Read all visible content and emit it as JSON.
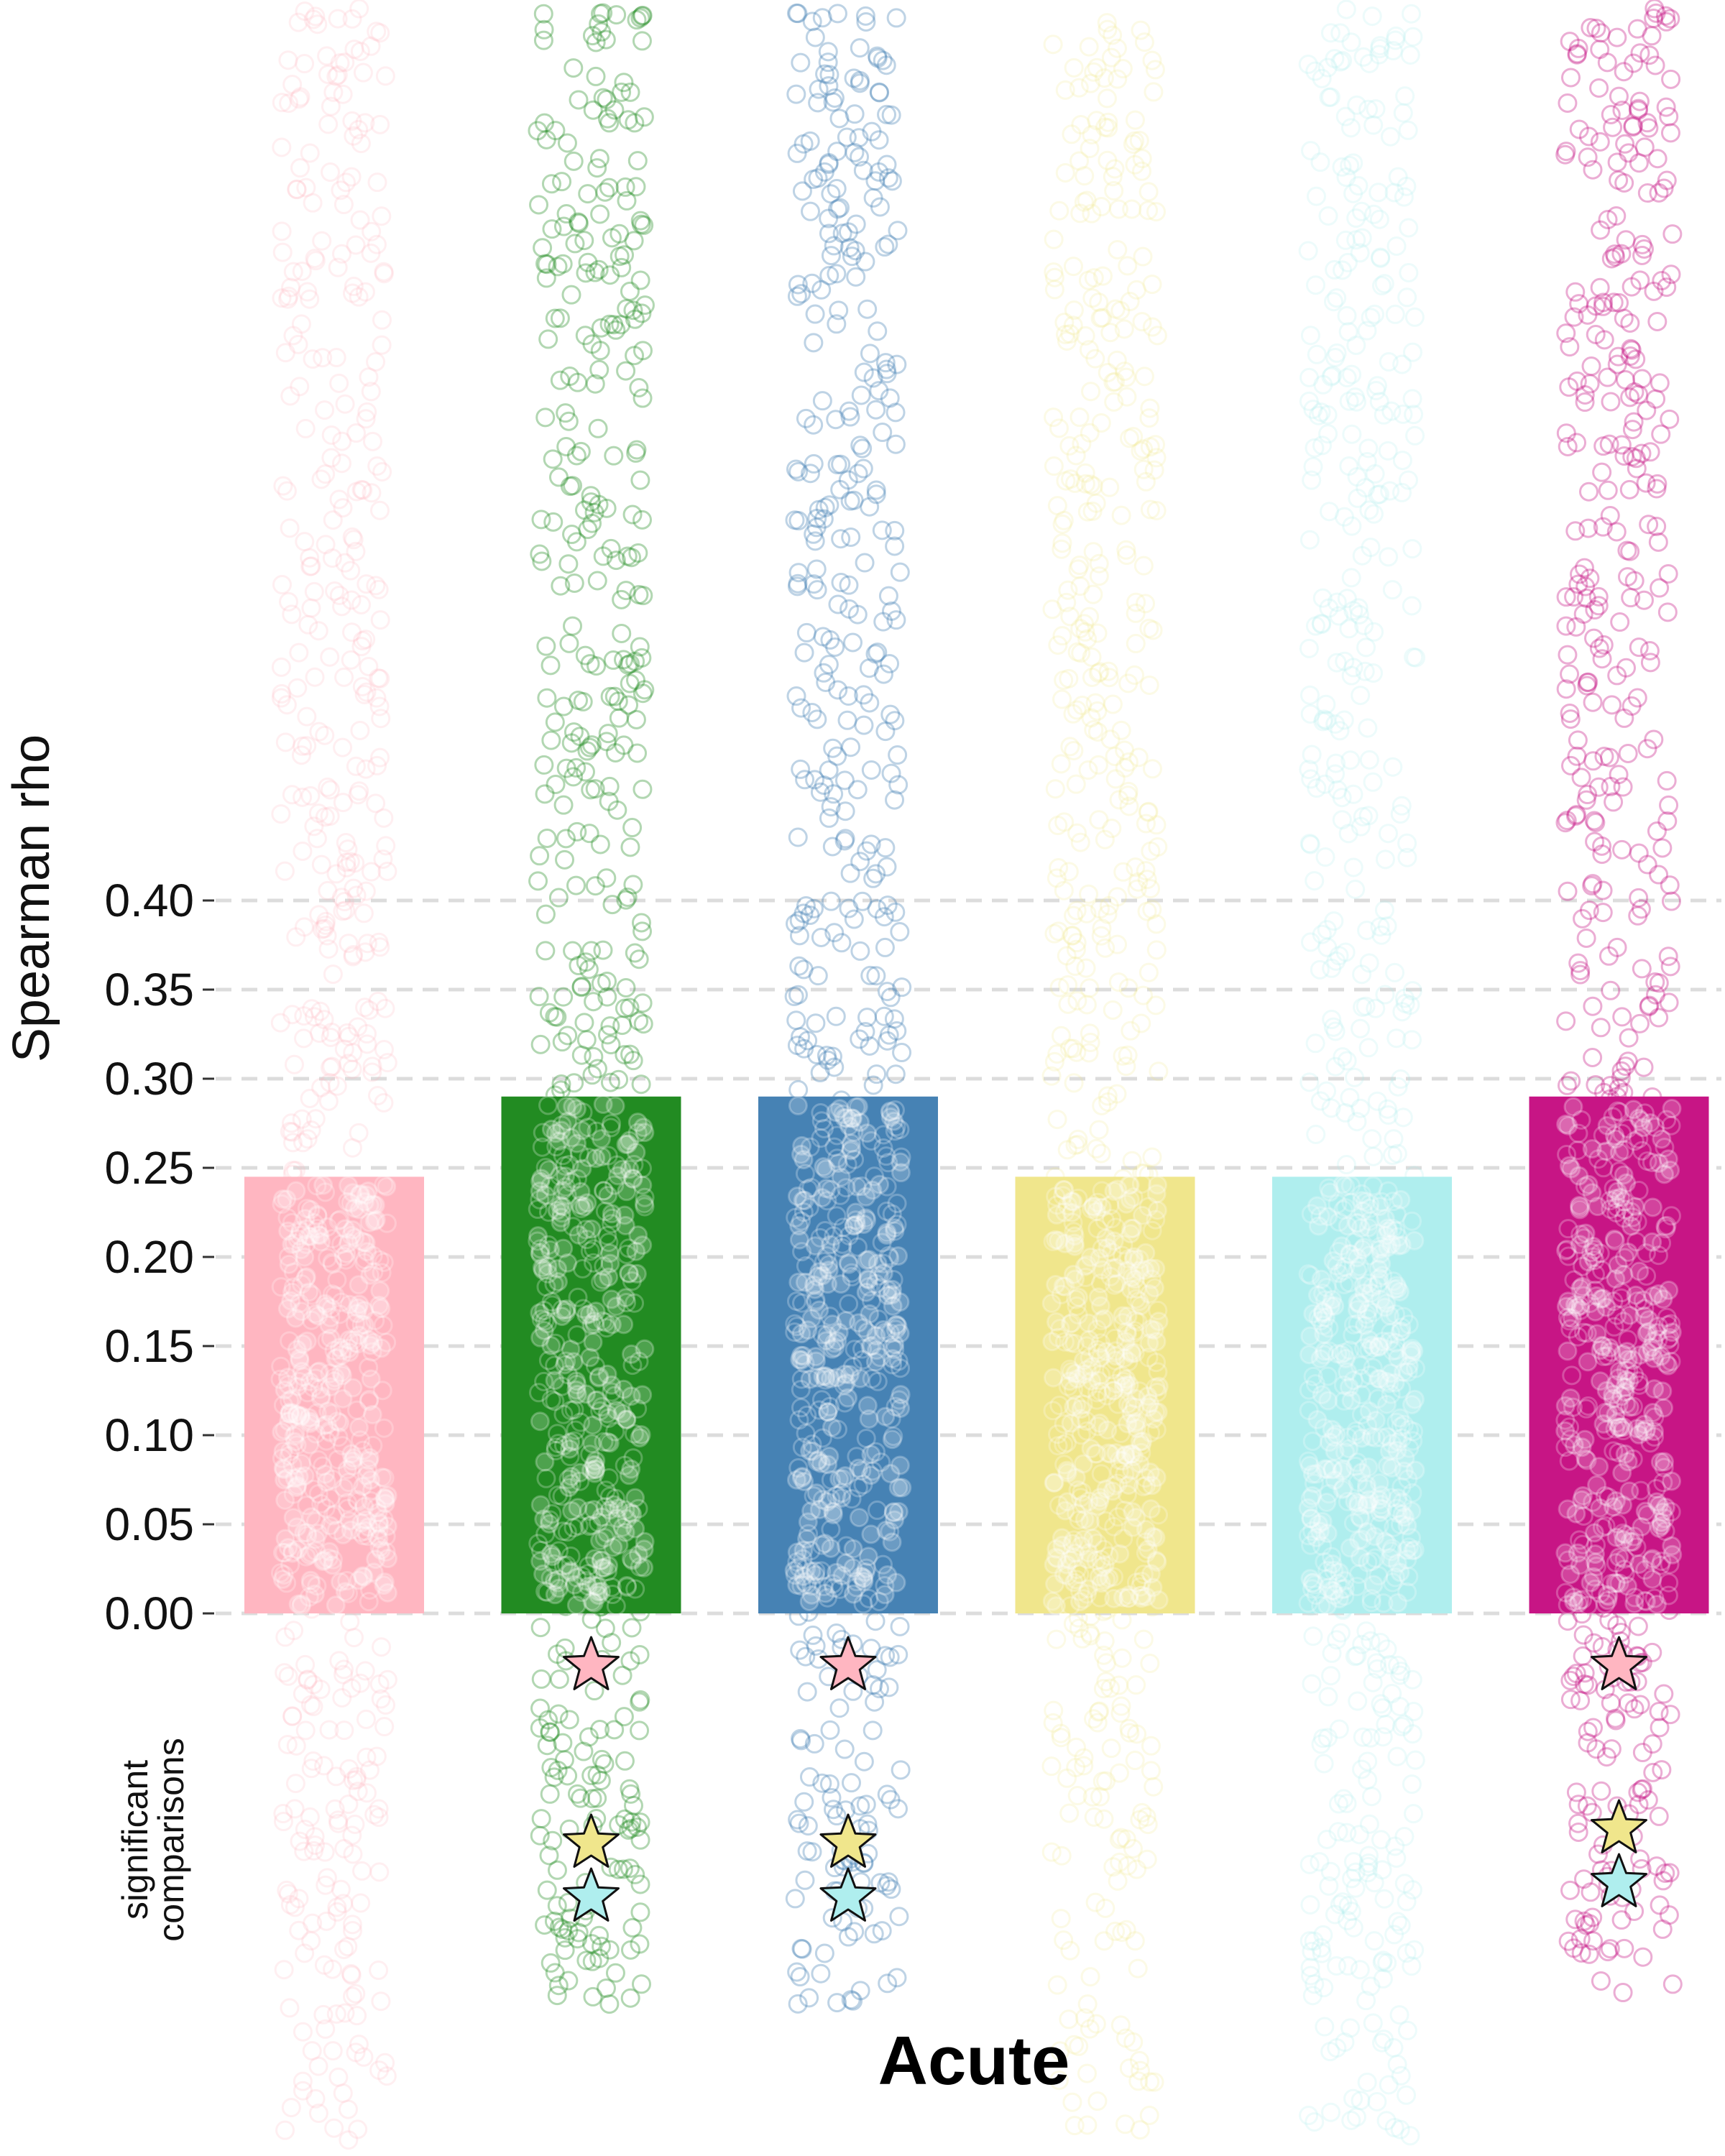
{
  "chart_data": {
    "type": "bar",
    "title": "",
    "xlabel": "Acute",
    "ylabel": "Spearman rho",
    "ylim": [
      0,
      0.45
    ],
    "yticks": [
      "0.00",
      "0.05",
      "0.10",
      "0.15",
      "0.20",
      "0.25",
      "0.30",
      "0.35",
      "0.40"
    ],
    "grid": true,
    "legend": "none",
    "categories": [
      "",
      "",
      "",
      "",
      "",
      ""
    ],
    "values": [
      0.245,
      0.29,
      0.29,
      0.245,
      0.245,
      0.29
    ],
    "colors": [
      "#ffb6c1",
      "#228b22",
      "#4682b4",
      "#f0e68c",
      "#afeeee",
      "#c71585"
    ],
    "sig_label_line1": "significant",
    "sig_label_line2": "comparisons",
    "significant_comparisons": [
      [],
      [
        "#ffb6c1",
        "#f0e68c",
        "#afeeee"
      ],
      [
        "#ffb6c1",
        "#f0e68c",
        "#afeeee"
      ],
      [],
      [],
      [
        "#ffb6c1",
        "#f0e68c",
        "#afeeee"
      ]
    ]
  }
}
